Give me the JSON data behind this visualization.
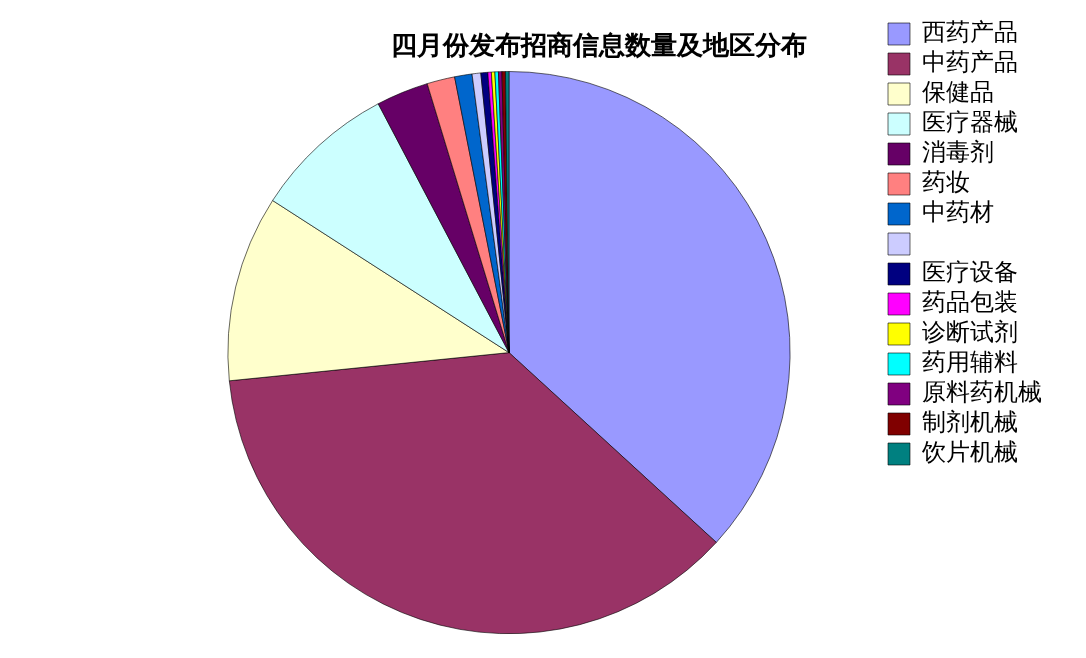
{
  "chart_data": {
    "type": "pie",
    "title": "四月份发布招商信息数量及地区分布",
    "categories": [
      "西药产品",
      "中药产品",
      "保健品",
      "医疗器械",
      "消毒剂",
      "药妆",
      "中药材",
      null,
      "医疗设备",
      "药品包装",
      "诊断试剂",
      "药用辅料",
      "原料药机械",
      "制剂机械",
      "饮片机械"
    ],
    "values": [
      36.8,
      36.6,
      10.7,
      8.2,
      3.0,
      1.6,
      1.0,
      0.5,
      0.4,
      0.2,
      0.2,
      0.2,
      0.2,
      0.2,
      0.2
    ],
    "colors": [
      "#9999ff",
      "#993366",
      "#ffffcc",
      "#ccffff",
      "#660066",
      "#ff8080",
      "#0066cc",
      "#ccccff",
      "#000080",
      "#ff00ff",
      "#ffff00",
      "#00ffff",
      "#800080",
      "#800000",
      "#008080"
    ],
    "legend": "right"
  }
}
